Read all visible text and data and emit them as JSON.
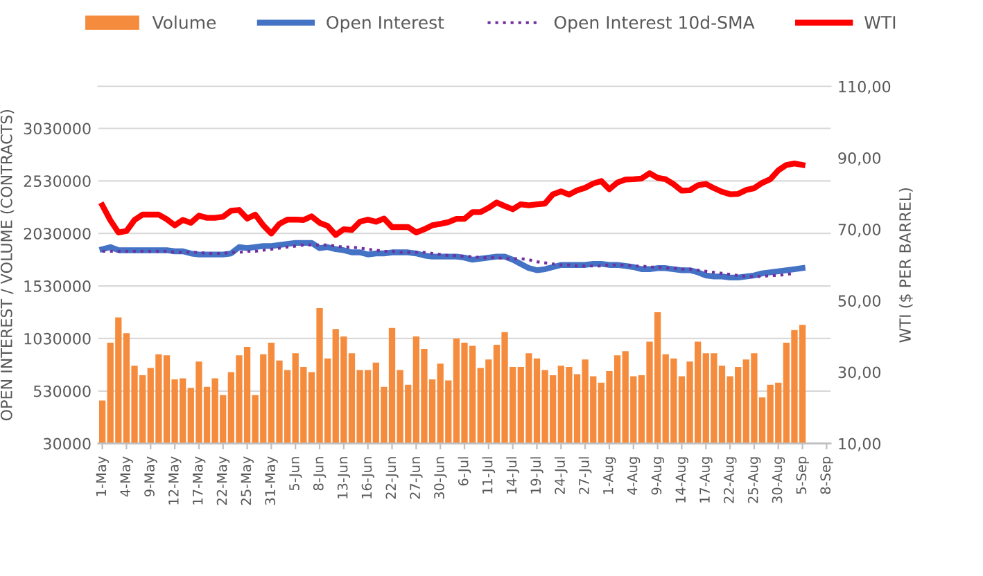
{
  "chart_data": {
    "type": "bar",
    "ylabel": "OPEN INTEREST / VOLUME (CONTRACTS)",
    "y2label": "WTI ($ PER BARREL)",
    "categories": [
      "1-May",
      null,
      null,
      "4-May",
      null,
      null,
      "9-May",
      null,
      null,
      "12-May",
      null,
      null,
      "17-May",
      null,
      null,
      "22-May",
      null,
      null,
      "25-May",
      null,
      null,
      "31-May",
      null,
      null,
      "5-Jun",
      null,
      null,
      "8-Jun",
      null,
      null,
      "13-Jun",
      null,
      null,
      "16-Jun",
      null,
      null,
      "22-Jun",
      null,
      null,
      "27-Jun",
      null,
      null,
      "30-Jun",
      null,
      null,
      "6-Jul",
      null,
      null,
      "11-Jul",
      null,
      null,
      "14-Jul",
      null,
      null,
      "19-Jul",
      null,
      null,
      "24-Jul",
      null,
      null,
      "27-Jul",
      null,
      null,
      "1-Aug",
      null,
      null,
      "4-Aug",
      null,
      null,
      "9-Aug",
      null,
      null,
      "14-Aug",
      null,
      null,
      "17-Aug",
      null,
      null,
      "22-Aug",
      null,
      null,
      "25-Aug",
      null,
      null,
      "30-Aug",
      null,
      null,
      "5-Sep",
      null,
      null,
      "8-Sep"
    ],
    "series": [
      {
        "name": "Volume",
        "color": "#f58b3c",
        "values": [
          440000,
          990000,
          1230000,
          1080000,
          770000,
          680000,
          750000,
          880000,
          870000,
          640000,
          650000,
          560000,
          810000,
          570000,
          650000,
          490000,
          710000,
          870000,
          950000,
          490000,
          880000,
          990000,
          820000,
          730000,
          890000,
          760000,
          710000,
          1320000,
          840000,
          1120000,
          1050000,
          890000,
          730000,
          730000,
          800000,
          570000,
          1130000,
          730000,
          590000,
          1050000,
          930000,
          640000,
          790000,
          630000,
          1030000,
          990000,
          960000,
          750000,
          830000,
          970000,
          1090000,
          760000,
          760000,
          890000,
          840000,
          730000,
          680000,
          770000,
          760000,
          690000,
          830000,
          670000,
          610000,
          720000,
          870000,
          910000,
          670000,
          680000,
          1000000,
          1280000,
          880000,
          840000,
          670000,
          810000,
          1000000,
          890000,
          890000,
          770000,
          670000,
          760000,
          830000,
          890000,
          470000,
          590000,
          610000,
          990000,
          1110000,
          1160000,
          null,
          null,
          null
        ]
      },
      {
        "name": "Open Interest",
        "type": "line",
        "color": "#4472c4",
        "line_style": "solid",
        "values": [
          1880000,
          1900000,
          1870000,
          1870000,
          1870000,
          1870000,
          1870000,
          1870000,
          1870000,
          1860000,
          1860000,
          1840000,
          1830000,
          1830000,
          1830000,
          1830000,
          1840000,
          1900000,
          1890000,
          1900000,
          1910000,
          1910000,
          1920000,
          1930000,
          1940000,
          1940000,
          1940000,
          1890000,
          1900000,
          1880000,
          1870000,
          1850000,
          1850000,
          1830000,
          1840000,
          1840000,
          1850000,
          1850000,
          1850000,
          1840000,
          1820000,
          1810000,
          1810000,
          1810000,
          1810000,
          1800000,
          1780000,
          1790000,
          1800000,
          1810000,
          1810000,
          1780000,
          1740000,
          1700000,
          1680000,
          1690000,
          1710000,
          1730000,
          1730000,
          1730000,
          1730000,
          1740000,
          1740000,
          1730000,
          1730000,
          1720000,
          1710000,
          1690000,
          1690000,
          1700000,
          1700000,
          1690000,
          1680000,
          1680000,
          1660000,
          1630000,
          1620000,
          1620000,
          1610000,
          1610000,
          1620000,
          1630000,
          1650000,
          1660000,
          1670000,
          1680000,
          1690000,
          1700000,
          null,
          null,
          null
        ]
      },
      {
        "name": "Open Interest 10d-SMA",
        "type": "line",
        "color": "#7030a0",
        "line_style": "dotted",
        "values": [
          1860000,
          1860000,
          1860000,
          1860000,
          1860000,
          1860000,
          1860000,
          1860000,
          1860000,
          1850000,
          1850000,
          1850000,
          1850000,
          1840000,
          1840000,
          1840000,
          1850000,
          1850000,
          1860000,
          1860000,
          1870000,
          1880000,
          1890000,
          1900000,
          1910000,
          1920000,
          1920000,
          1920000,
          1920000,
          1910000,
          1900000,
          1900000,
          1890000,
          1880000,
          1870000,
          1860000,
          1860000,
          1850000,
          1850000,
          1850000,
          1850000,
          1840000,
          1830000,
          1820000,
          1820000,
          1810000,
          1810000,
          1800000,
          1800000,
          1800000,
          1790000,
          1790000,
          1790000,
          1780000,
          1760000,
          1750000,
          1740000,
          1730000,
          1730000,
          1720000,
          1720000,
          1720000,
          1720000,
          1730000,
          1730000,
          1730000,
          1720000,
          1720000,
          1710000,
          1710000,
          1700000,
          1700000,
          1690000,
          1690000,
          1680000,
          1670000,
          1660000,
          1650000,
          1640000,
          1630000,
          1620000,
          1620000,
          1620000,
          1630000,
          1630000,
          1640000,
          1650000,
          null,
          null,
          null,
          null
        ]
      },
      {
        "name": "WTI",
        "type": "line",
        "axis": "y2",
        "color": "#ff0000",
        "line_style": "solid",
        "values": [
          76.7,
          72.5,
          69.1,
          69.5,
          72.6,
          74.1,
          74.1,
          74.1,
          72.8,
          71.1,
          72.6,
          71.8,
          73.8,
          73.2,
          73.2,
          73.5,
          75.2,
          75.4,
          73.0,
          74.1,
          71.1,
          68.8,
          71.5,
          72.7,
          72.7,
          72.6,
          73.6,
          71.8,
          70.9,
          68.4,
          70.0,
          69.8,
          72.1,
          72.7,
          72.1,
          73.0,
          70.6,
          70.6,
          70.6,
          69.1,
          70.0,
          71.1,
          71.5,
          72.0,
          72.9,
          72.9,
          74.8,
          74.8,
          76.0,
          77.5,
          76.5,
          75.6,
          77.0,
          76.7,
          77.0,
          77.2,
          79.8,
          80.6,
          79.7,
          80.9,
          81.6,
          82.8,
          83.5,
          81.2,
          83.1,
          83.9,
          84.0,
          84.2,
          85.7,
          84.4,
          84.0,
          82.6,
          80.8,
          80.9,
          82.3,
          82.7,
          81.5,
          80.5,
          79.8,
          79.9,
          81.0,
          81.5,
          83.0,
          84.0,
          86.5,
          88.0,
          88.4,
          88.0,
          null,
          null,
          null
        ]
      }
    ],
    "ylim": [
      30000,
      3430000
    ],
    "yticks": [
      30000,
      530000,
      1030000,
      1530000,
      2030000,
      2530000,
      3030000
    ],
    "y2lim": [
      10,
      110
    ],
    "y2ticks": [
      {
        "value": 10,
        "label": "10,00"
      },
      {
        "value": 30,
        "label": "30,00"
      },
      {
        "value": 50,
        "label": "50,00"
      },
      {
        "value": 70,
        "label": "70,00"
      },
      {
        "value": 90,
        "label": "90,00"
      },
      {
        "value": 110,
        "label": "110,00"
      }
    ],
    "grid": "y",
    "legend": "top"
  }
}
